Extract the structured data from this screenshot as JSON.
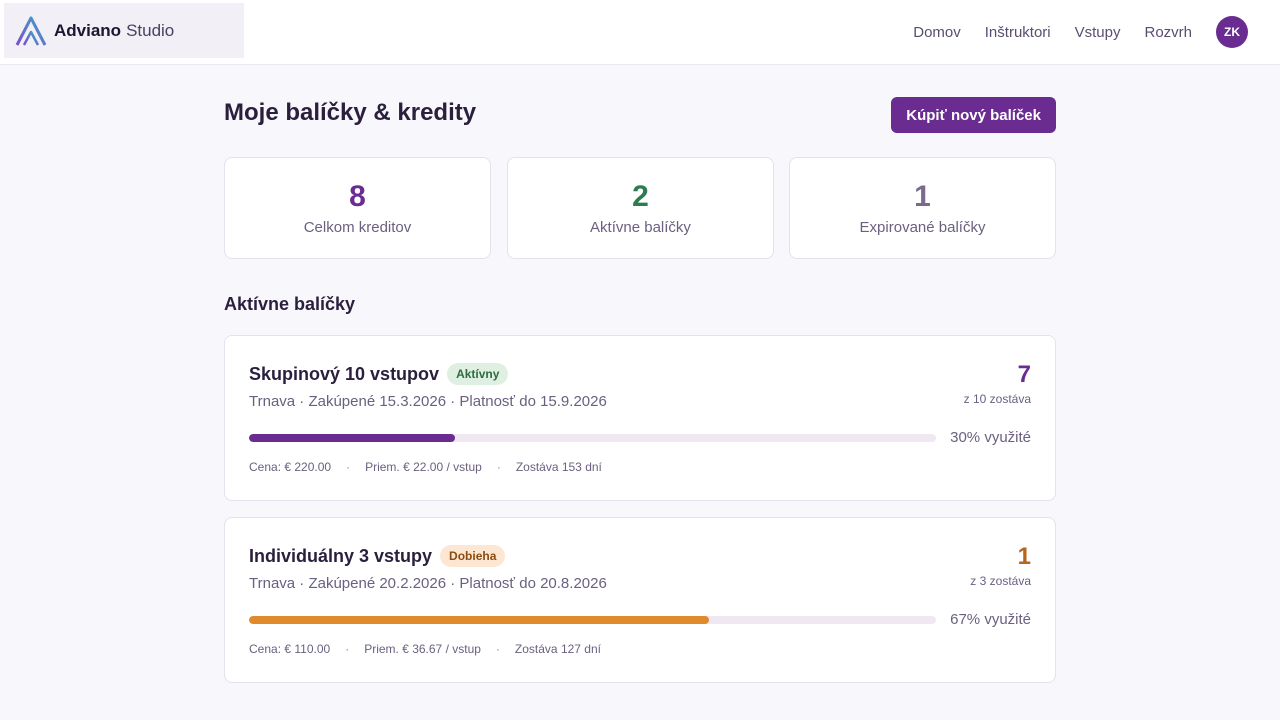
{
  "header": {
    "brand": {
      "name": "Adviano",
      "sub": "Studio"
    },
    "nav": [
      "Domov",
      "Inštruktori",
      "Vstupy",
      "Rozvrh"
    ],
    "avatar_initials": "ZK"
  },
  "main": {
    "title": "Moje balíčky & kredity",
    "buy_button": "Kúpiť nový balíček",
    "stats": [
      {
        "value": "8",
        "label": "Celkom kreditov",
        "color": "#6a2c91"
      },
      {
        "value": "2",
        "label": "Aktívne balíčky",
        "color": "#2e7d4f"
      },
      {
        "value": "1",
        "label": "Expirované balíčky",
        "color": "#7b6a8e"
      }
    ],
    "section_title": "Aktívne balíčky",
    "packages": [
      {
        "name": "Skupinový 10 vstupov",
        "badge": "Aktívny",
        "badge_bg": "#dff0e3",
        "badge_color": "#2e6b40",
        "meta": "Trnava · Zakúpené 15.3.2026 · Platnosť do 15.9.2026",
        "remaining": "7",
        "remaining_label": "z 10 zostáva",
        "accent": "#6a2c91",
        "used_fraction": 0.3,
        "used_label": "30% využité",
        "price": "Cena: € 220.00",
        "avg": "Priem. € 22.00 / vstup",
        "days_left": "Zostáva 153 dní"
      },
      {
        "name": "Individuálny 3 vstupy",
        "badge": "Dobieha",
        "badge_bg": "#fde7d2",
        "badge_color": "#8a4b12",
        "meta": "Trnava · Zakúpené 20.2.2026 · Platnosť do 20.8.2026",
        "remaining": "1",
        "remaining_label": "z 3 zostáva",
        "accent": "#e08a2b",
        "count_color": "#b5651d",
        "used_fraction": 0.67,
        "used_label": "67% využité",
        "price": "Cena: € 110.00",
        "avg": "Priem. € 36.67 / vstup",
        "days_left": "Zostáva 127 dní"
      }
    ]
  }
}
